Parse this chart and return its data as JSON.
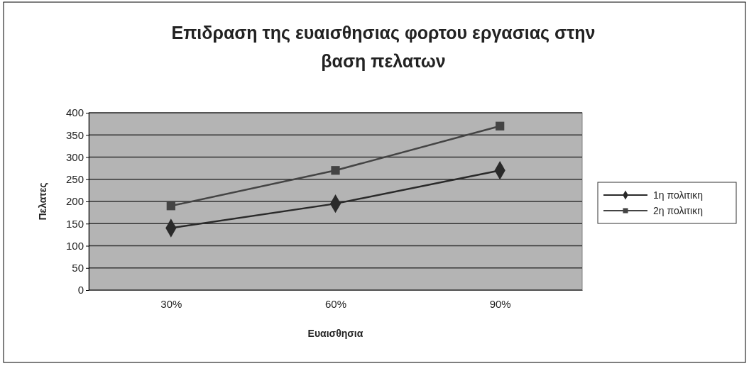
{
  "chart_data": {
    "type": "line",
    "title": "Επιδραση της ευαισθησιας  φορτου εργασιας στην βαση πελατων",
    "xlabel": "Ευαισθησια",
    "ylabel": "Πελατες",
    "categories": [
      "30%",
      "60%",
      "90%"
    ],
    "series": [
      {
        "name": "1η πολιτικη",
        "color": "#2a2a2a",
        "marker": "diamond",
        "values": [
          140,
          195,
          270
        ]
      },
      {
        "name": "2η πολιτικη",
        "color": "#444444",
        "marker": "square",
        "values": [
          190,
          270,
          370
        ]
      }
    ],
    "ylim": [
      0,
      400
    ],
    "yticks": [
      0,
      50,
      100,
      150,
      200,
      250,
      300,
      350,
      400
    ],
    "grid": "y",
    "legend": "right",
    "line_style": "solid"
  }
}
